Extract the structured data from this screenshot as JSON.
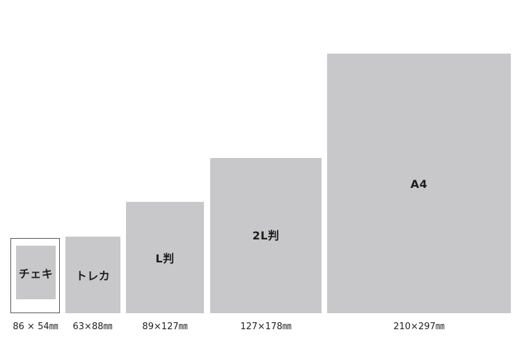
{
  "colors": {
    "card_fill": "#c8c8ca",
    "frame_border": "#555555",
    "text": "#1e1e1e"
  },
  "cards": [
    {
      "id": "cheki",
      "label": "チェキ",
      "dimension": "86 × 54㎜"
    },
    {
      "id": "toreka",
      "label": "トレカ",
      "dimension": "63×88㎜"
    },
    {
      "id": "l-ban",
      "label": "L判",
      "dimension": "89×127㎜"
    },
    {
      "id": "2l-ban",
      "label": "2L判",
      "dimension": "127×178㎜"
    },
    {
      "id": "a4",
      "label": "A4",
      "dimension": "210×297㎜"
    }
  ]
}
